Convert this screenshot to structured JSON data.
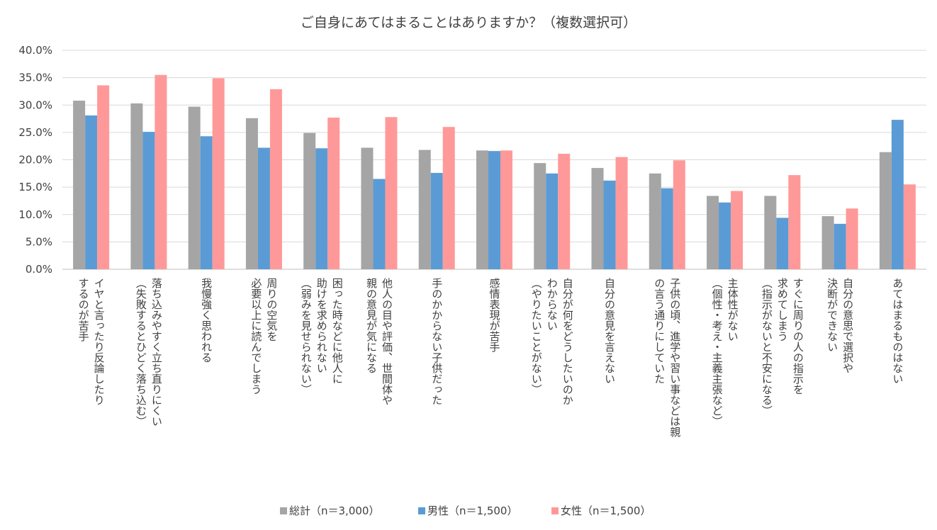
{
  "chart_data": {
    "type": "bar",
    "title": "ご自身にあてはまることはありますか？（複数選択可）",
    "xlabel": "",
    "ylabel": "",
    "ylim": [
      0,
      40
    ],
    "yticks": [
      "0.0%",
      "5.0%",
      "10.0%",
      "15.0%",
      "20.0%",
      "25.0%",
      "30.0%",
      "35.0%",
      "40.0%"
    ],
    "grid": true,
    "legend_position": "bottom",
    "categories": [
      [
        "イヤと言ったり反論したり",
        "するのが苦手"
      ],
      [
        "落ち込みやすく立ち直りにくい",
        "（失敗するとひどく落ち込む）"
      ],
      [
        "我慢強く思われる"
      ],
      [
        "周りの空気を",
        "必要以上に読んでしまう"
      ],
      [
        "困った時などに他人に",
        "助けを求められない",
        "（弱みを見せられない）"
      ],
      [
        "他人の目や評価、世間体や",
        "親の意見が気になる"
      ],
      [
        "手のかからない子供だった"
      ],
      [
        "感情表現が苦手"
      ],
      [
        "自分が何をどうしたいのか",
        "わからない",
        "（やりたいことがない）"
      ],
      [
        "自分の意見を言えない"
      ],
      [
        "子供の頃、進学や習い事などは親",
        "の言う通りにしていた"
      ],
      [
        "主体性がない",
        "（個性・考え・主義主張など）"
      ],
      [
        "すぐに周りの人の指示を",
        "求めてしまう",
        "（指示がないと不安になる）"
      ],
      [
        "自分の意思で選択や",
        "決断ができない"
      ],
      [
        "あてはまるものはない"
      ]
    ],
    "series": [
      {
        "name": "総計（n＝3,000）",
        "color": "#a5a5a5",
        "values": [
          30.8,
          30.3,
          29.7,
          27.6,
          24.9,
          22.2,
          21.8,
          21.7,
          19.4,
          18.5,
          17.5,
          13.4,
          13.4,
          9.7,
          21.4
        ]
      },
      {
        "name": "男性（n＝1,500）",
        "color": "#5b9bd5",
        "values": [
          28.1,
          25.1,
          24.3,
          22.2,
          22.1,
          16.5,
          17.6,
          21.6,
          17.5,
          16.2,
          14.8,
          12.2,
          9.4,
          8.3,
          27.3
        ]
      },
      {
        "name": "女性（n＝1,500）",
        "color": "#ff9999",
        "values": [
          33.6,
          35.5,
          34.9,
          32.9,
          27.7,
          27.8,
          26.0,
          21.7,
          21.1,
          20.5,
          19.9,
          14.3,
          17.2,
          11.1,
          15.5
        ]
      }
    ]
  }
}
